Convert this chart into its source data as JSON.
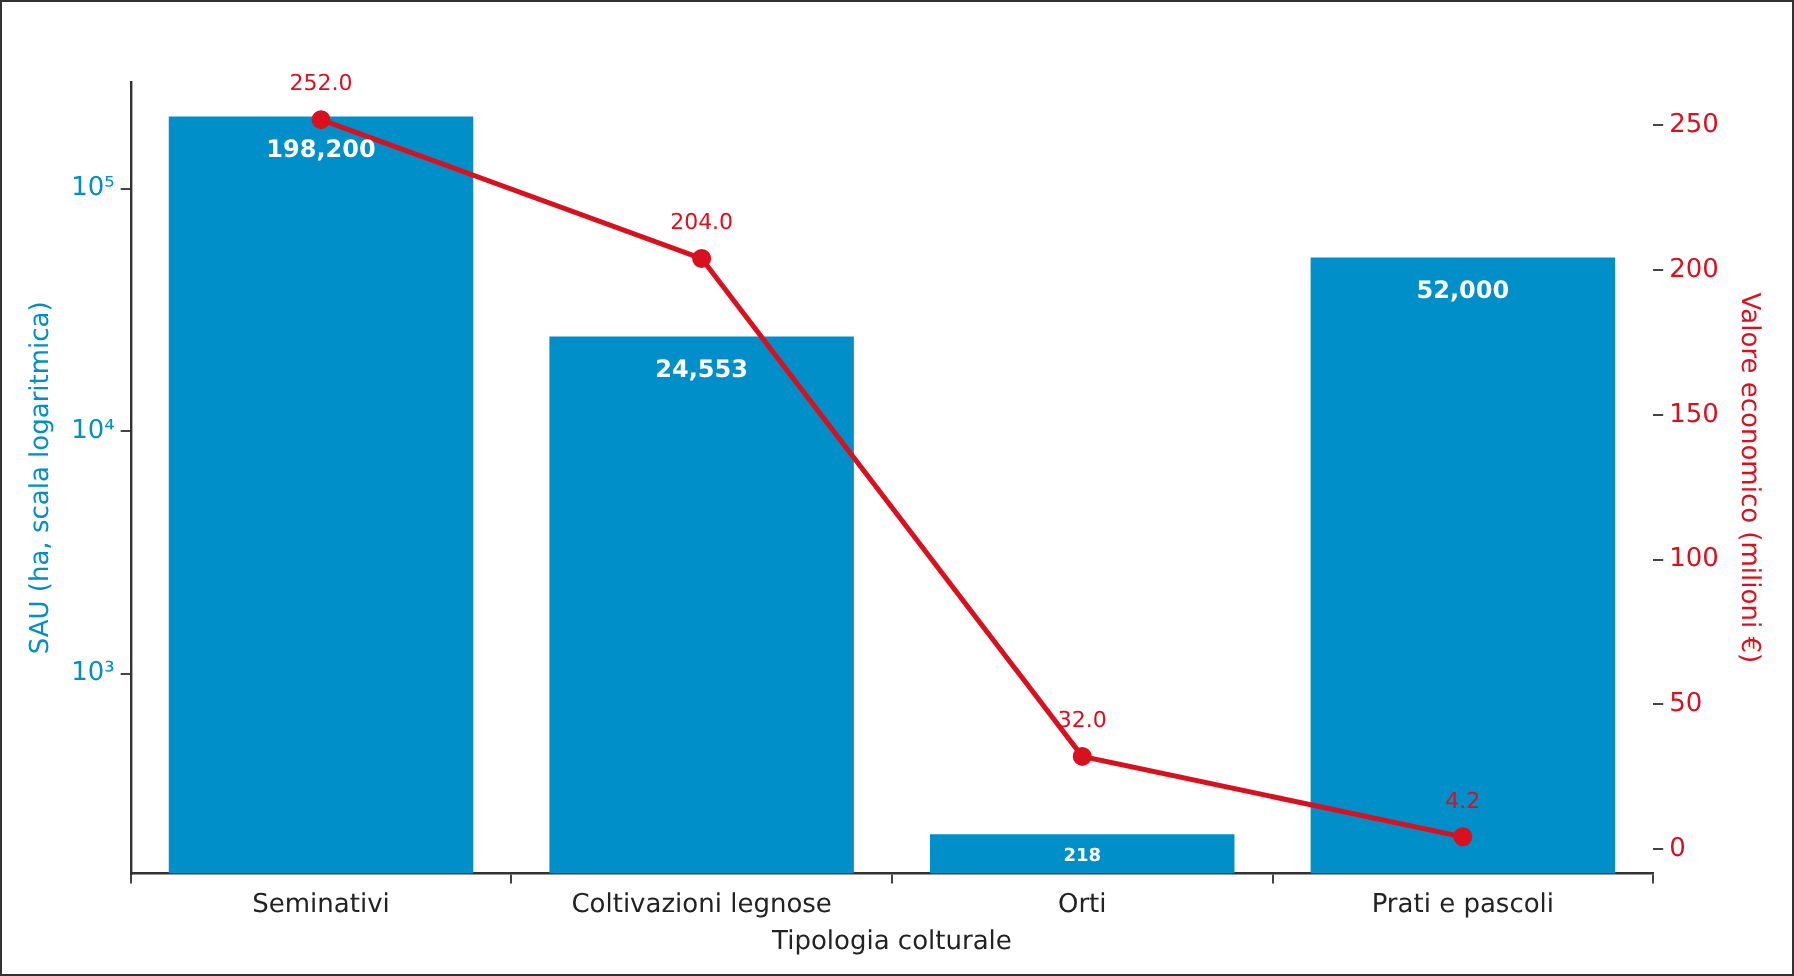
{
  "chart_data": {
    "type": "bar",
    "xlabel": "Tipologia colturale",
    "ylabel": "SAU (ha, scala logaritmica)",
    "y2label": "Valore economico (milioni €)",
    "categories": [
      "Seminativi",
      "Coltivazioni legnose",
      "Orti",
      "Prati e pascoli"
    ],
    "series": [
      {
        "color": "#008fc8",
        "values": [
          198200,
          24553,
          218,
          52000
        ],
        "value_labels": [
          "198,200",
          "24,553",
          "218",
          "52,000"
        ]
      },
      {
        "type": "line",
        "axis": "y2",
        "color": "#d9101e",
        "values": [
          252.0,
          204.0,
          32.0,
          4.2
        ],
        "value_labels": [
          "252.0",
          "204.0",
          "32.0",
          "4.2"
        ],
        "marker": "circle"
      }
    ],
    "log": "y",
    "ylim": [
      150,
      275000
    ],
    "yticks": [
      {
        "value": 1000,
        "label": "10³"
      },
      {
        "value": 10000,
        "label": "10⁴"
      },
      {
        "value": 100000,
        "label": "10⁵"
      }
    ],
    "y2lim": [
      -8.5,
      265
    ],
    "y2ticks": [
      0,
      50,
      100,
      150,
      200,
      250
    ],
    "grid": false,
    "legend": false
  }
}
